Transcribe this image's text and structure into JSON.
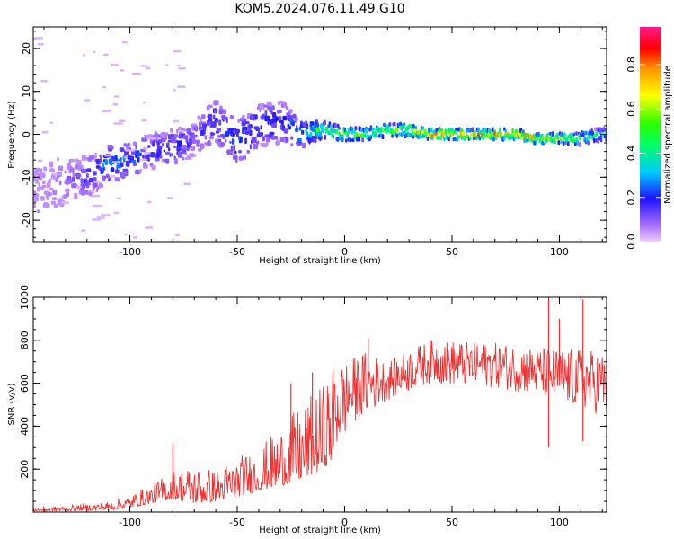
{
  "page": {
    "title": "KOM5.2024.076.11.49.G10"
  },
  "chart_data": [
    {
      "type": "heatmap",
      "title": "KOM5.2024.076.11.49.G10",
      "xlabel": "Height of straight line (km)",
      "ylabel": "Frequency (Hz)",
      "xlim": [
        -145,
        122
      ],
      "ylim": [
        -25,
        25
      ],
      "x_ticks": [
        -100,
        -50,
        0,
        50,
        100
      ],
      "y_ticks": [
        -20,
        -10,
        0,
        10,
        20
      ],
      "colorbar": {
        "label": "Normalized spectral amplitude",
        "ticks": [
          "0.0",
          "0.2",
          "0.4",
          "0.6",
          "0.8"
        ],
        "range": [
          0,
          0.97
        ],
        "colormap": "rainbow (purple-blue-cyan-green-yellow-red-magenta)"
      },
      "ridge": {
        "x": [
          -140,
          -120,
          -110,
          -100,
          -90,
          -80,
          -70,
          -60,
          -50,
          -40,
          -30,
          -20,
          -10,
          0,
          10,
          20,
          30,
          40,
          50,
          60,
          70,
          80,
          90,
          100,
          110,
          120
        ],
        "y": [
          -12,
          -10,
          -7,
          -6,
          -4,
          -3,
          -1,
          3,
          -2,
          2,
          3,
          0,
          1,
          0,
          0,
          1,
          1,
          0,
          0,
          0,
          0,
          0,
          -1,
          -1,
          -1,
          0
        ],
        "spread_hz": [
          6,
          5,
          4,
          4,
          4,
          4,
          4,
          5,
          5,
          5,
          5,
          3,
          2,
          1.5,
          1.5,
          1.5,
          1.5,
          1.2,
          1.2,
          1.2,
          1.2,
          1.2,
          1.2,
          1.2,
          1.5,
          1.5
        ],
        "amplitude": [
          0.05,
          0.15,
          0.3,
          0.25,
          0.2,
          0.2,
          0.15,
          0.2,
          0.25,
          0.2,
          0.2,
          0.35,
          0.5,
          0.6,
          0.55,
          0.55,
          0.65,
          0.8,
          0.85,
          0.75,
          0.85,
          0.8,
          0.75,
          0.6,
          0.5,
          0.4
        ]
      }
    },
    {
      "type": "line",
      "xlabel": "Height of straight line (km)",
      "ylabel": "SNR (v/v)",
      "xlim": [
        -145,
        122
      ],
      "ylim": [
        0,
        1000
      ],
      "x_ticks": [
        -100,
        -50,
        0,
        50,
        100
      ],
      "y_ticks": [
        200,
        400,
        600,
        800,
        1000
      ],
      "color": "#ef3131",
      "envelope": {
        "x": [
          -145,
          -130,
          -110,
          -100,
          -90,
          -80,
          -70,
          -60,
          -50,
          -40,
          -30,
          -20,
          -10,
          -5,
          0,
          10,
          20,
          30,
          40,
          50,
          60,
          70,
          80,
          90,
          100,
          110,
          122
        ],
        "low": [
          5,
          5,
          10,
          20,
          40,
          60,
          40,
          50,
          70,
          100,
          120,
          150,
          200,
          250,
          350,
          450,
          520,
          560,
          600,
          590,
          580,
          580,
          560,
          540,
          500,
          480,
          440
        ],
        "high": [
          20,
          30,
          50,
          80,
          130,
          200,
          220,
          200,
          260,
          300,
          400,
          500,
          600,
          700,
          700,
          750,
          700,
          760,
          800,
          800,
          790,
          790,
          780,
          770,
          760,
          760,
          750
        ]
      },
      "spikes": [
        {
          "x": -80,
          "y": 320
        },
        {
          "x": -25,
          "y": 600
        },
        {
          "x": -15,
          "y": 650
        },
        {
          "x": 11,
          "y": 810
        },
        {
          "x": 95,
          "y": 1000
        },
        {
          "x": 100,
          "y": 900
        },
        {
          "x": 111,
          "y": 990
        },
        {
          "x": 95,
          "y": 300
        },
        {
          "x": 111,
          "y": 330
        }
      ]
    }
  ]
}
